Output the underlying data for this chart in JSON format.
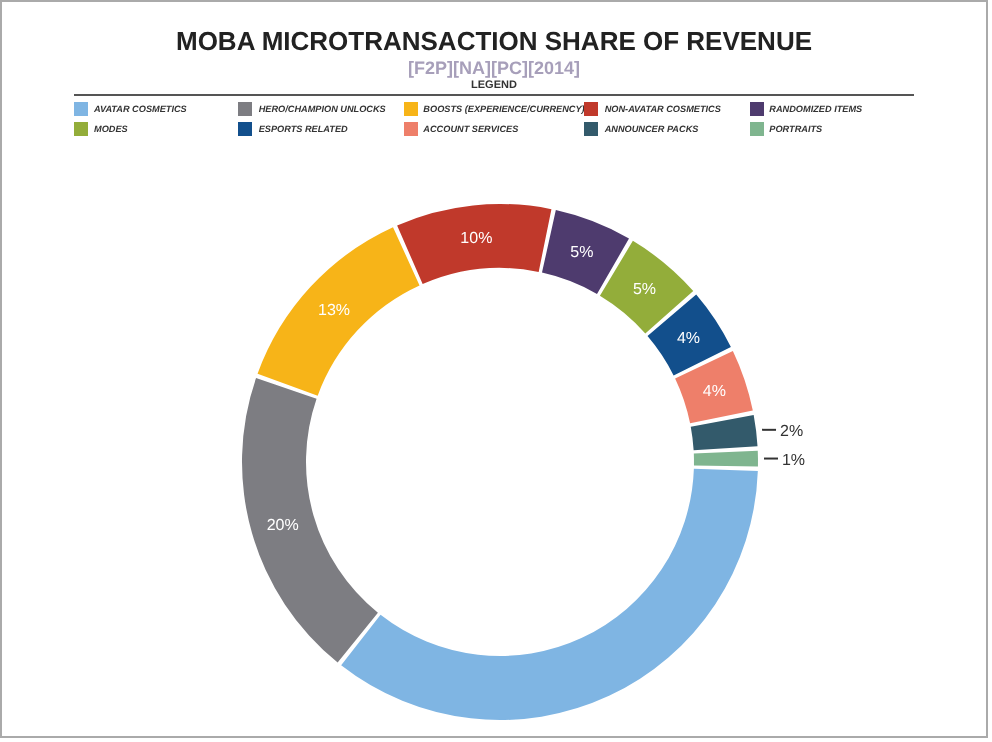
{
  "chart_data": {
    "type": "donut",
    "title": "MOBA MICROTRANSACTION SHARE OF REVENUE",
    "subtitle": "[F2P][NA][PC][2014]",
    "legend_title": "LEGEND",
    "legend": "top",
    "categories": [
      "AVATAR COSMETICS",
      "HERO/CHAMPION UNLOCKS",
      "BOOSTS (EXPERIENCE/CURRENCY)",
      "NON-AVATAR COSMETICS",
      "RANDOMIZED ITEMS",
      "MODES",
      "ESPORTS RELATED",
      "ACCOUNT SERVICES",
      "ANNOUNCER PACKS",
      "PORTRAITS"
    ],
    "values": [
      36,
      20,
      13,
      10,
      5,
      5,
      4,
      4,
      2,
      1
    ],
    "value_labels": [
      null,
      "20%",
      "13%",
      "10%",
      "5%",
      "5%",
      "4%",
      "4%",
      "2%",
      "1%"
    ],
    "colors": [
      "#7fb5e3",
      "#7d7d82",
      "#f7b418",
      "#c0392b",
      "#4e3b6e",
      "#93ad3a",
      "#124f8c",
      "#ee7f6a",
      "#335a6b",
      "#7fb58f"
    ]
  }
}
